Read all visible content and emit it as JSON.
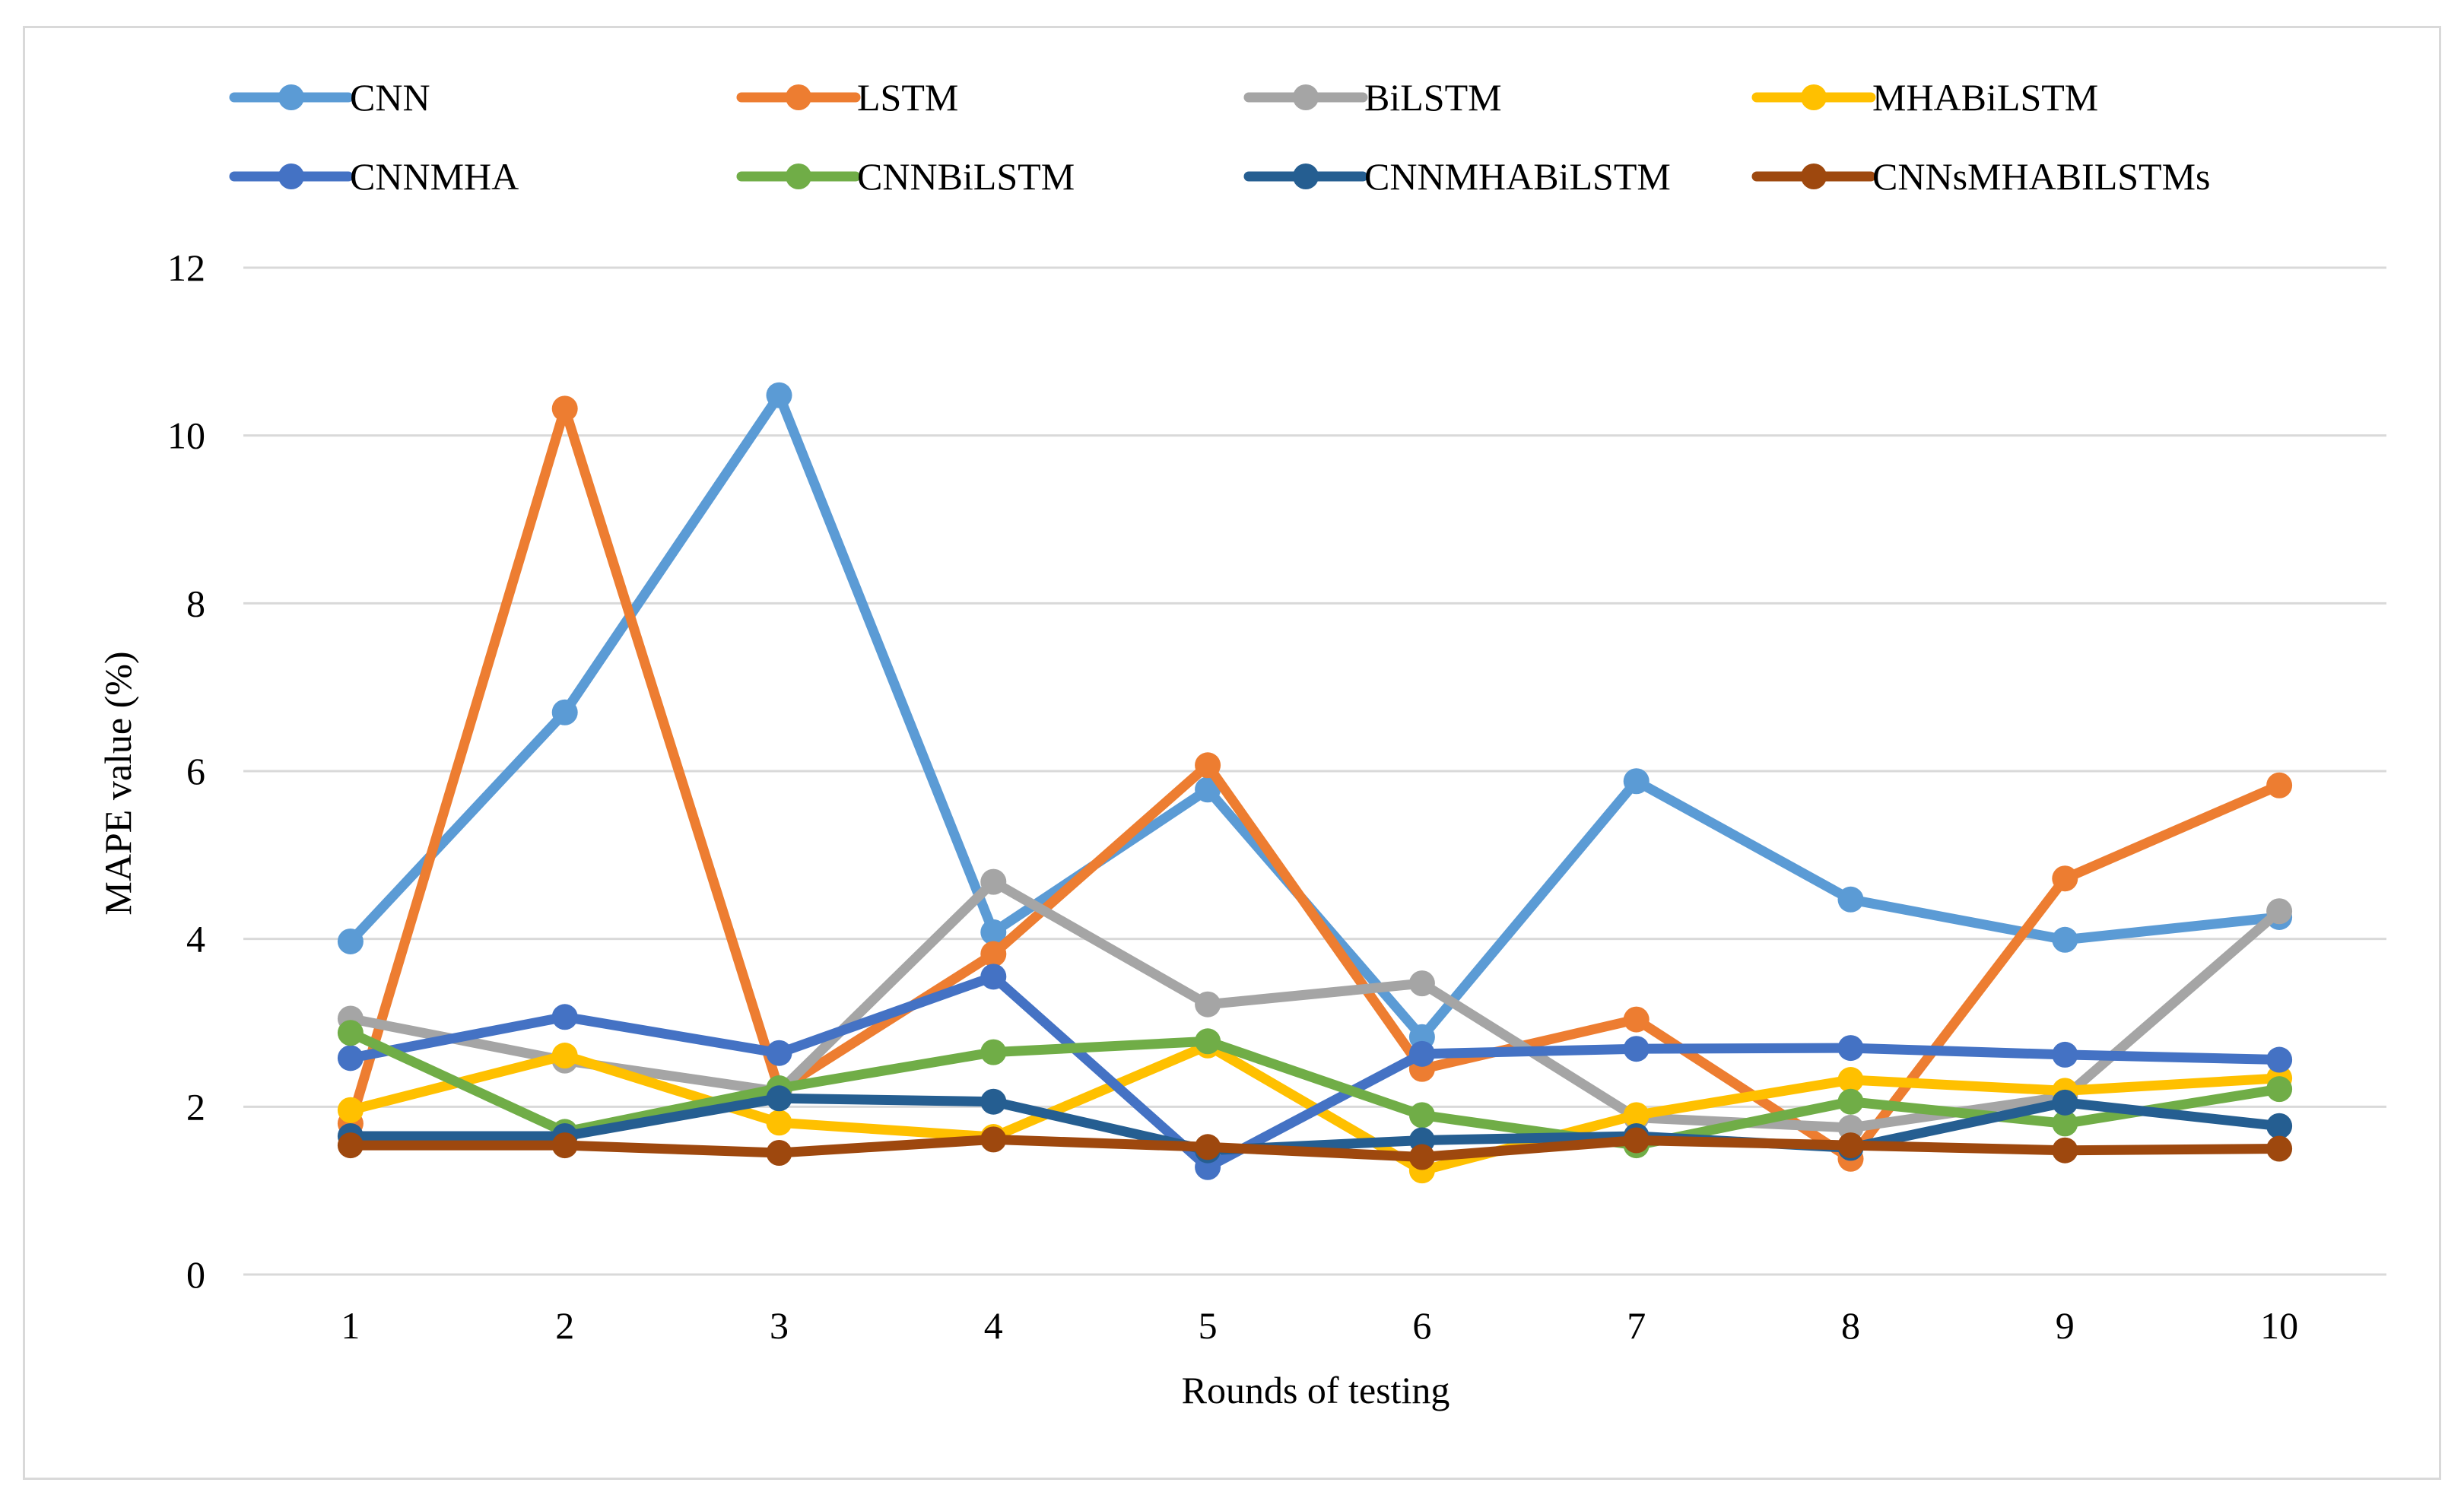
{
  "chart_data": {
    "type": "line",
    "title": "",
    "xlabel": "Rounds of testing",
    "ylabel": "MAPE value (%)",
    "categories": [
      "1",
      "2",
      "3",
      "4",
      "5",
      "6",
      "7",
      "8",
      "9",
      "10"
    ],
    "ylim": [
      0,
      12
    ],
    "yticks": [
      "0",
      "2",
      "4",
      "6",
      "8",
      "10",
      "12"
    ],
    "grid": true,
    "legend_position": "top",
    "series": [
      {
        "name": "CNN",
        "color": "#5B9BD5",
        "values": [
          3.97,
          6.7,
          10.48,
          4.08,
          5.78,
          2.83,
          5.88,
          4.47,
          3.99,
          4.26
        ]
      },
      {
        "name": "LSTM",
        "color": "#ED7D31",
        "values": [
          1.8,
          10.32,
          2.2,
          3.82,
          6.07,
          2.45,
          3.04,
          1.38,
          4.72,
          5.83
        ]
      },
      {
        "name": "BiLSTM",
        "color": "#A5A5A5",
        "values": [
          3.05,
          2.55,
          2.18,
          4.68,
          3.22,
          3.47,
          1.87,
          1.75,
          2.12,
          4.33
        ]
      },
      {
        "name": "MHABiLSTM",
        "color": "#FFC000",
        "values": [
          1.96,
          2.61,
          1.81,
          1.64,
          2.73,
          1.24,
          1.9,
          2.32,
          2.19,
          2.34
        ]
      },
      {
        "name": "CNNMHA",
        "color": "#4472C4",
        "values": [
          2.58,
          3.07,
          2.64,
          3.55,
          1.28,
          2.63,
          2.69,
          2.7,
          2.62,
          2.56
        ]
      },
      {
        "name": "CNNBiLSTM",
        "color": "#70AD47",
        "values": [
          2.88,
          1.7,
          2.22,
          2.65,
          2.78,
          1.9,
          1.54,
          2.06,
          1.8,
          2.21
        ]
      },
      {
        "name": "CNNMHABiLSTM",
        "color": "#255E91",
        "values": [
          1.65,
          1.65,
          2.1,
          2.06,
          1.48,
          1.6,
          1.65,
          1.51,
          2.05,
          1.77
        ]
      },
      {
        "name": "CNNsMHABILSTMs",
        "color": "#9E480E",
        "values": [
          1.54,
          1.54,
          1.45,
          1.61,
          1.52,
          1.4,
          1.6,
          1.54,
          1.48,
          1.5
        ]
      }
    ]
  }
}
